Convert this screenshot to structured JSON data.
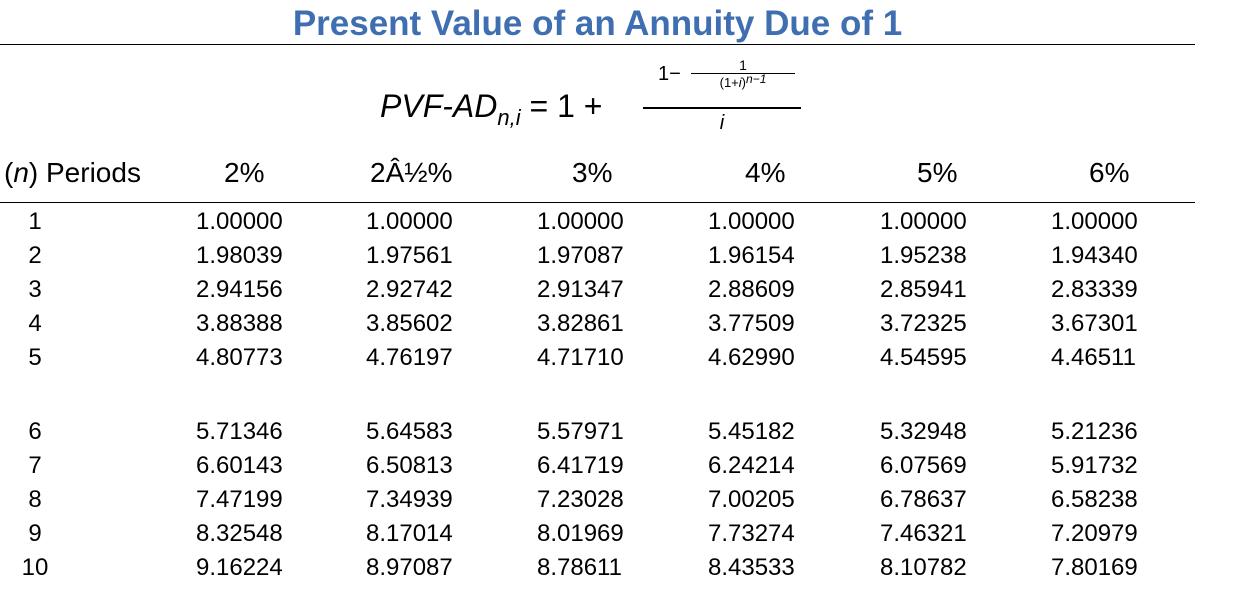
{
  "title": "Present Value of an Annuity Due of 1",
  "formula": {
    "lhs_main": "PVF-AD",
    "lhs_sub": "n,i",
    "lhs_tail": " = 1 + ",
    "outer_numerator_prefix": "1−",
    "inner_numerator": "1",
    "inner_denominator_base": "(1+",
    "inner_denominator_var": "i",
    "inner_denominator_close": ")",
    "inner_denominator_exp": "n−1",
    "outer_denominator": "i"
  },
  "table": {
    "period_header_var": "n",
    "period_header_text": ") Periods",
    "period_header_open": "(",
    "rate_headers": [
      "2%",
      "2Â½%",
      "3%",
      "4%",
      "5%",
      "6%"
    ],
    "rows": [
      {
        "period": "1",
        "values": [
          "1.00000",
          "1.00000",
          "1.00000",
          "1.00000",
          "1.00000",
          "1.00000"
        ]
      },
      {
        "period": "2",
        "values": [
          "1.98039",
          "1.97561",
          "1.97087",
          "1.96154",
          "1.95238",
          "1.94340"
        ]
      },
      {
        "period": "3",
        "values": [
          "2.94156",
          "2.92742",
          "2.91347",
          "2.88609",
          "2.85941",
          "2.83339"
        ]
      },
      {
        "period": "4",
        "values": [
          "3.88388",
          "3.85602",
          "3.82861",
          "3.77509",
          "3.72325",
          "3.67301"
        ]
      },
      {
        "period": "5",
        "values": [
          "4.80773",
          "4.76197",
          "4.71710",
          "4.62990",
          "4.54595",
          "4.46511"
        ]
      },
      {
        "period": "6",
        "values": [
          "5.71346",
          "5.64583",
          "5.57971",
          "5.45182",
          "5.32948",
          "5.21236"
        ]
      },
      {
        "period": "7",
        "values": [
          "6.60143",
          "6.50813",
          "6.41719",
          "6.24214",
          "6.07569",
          "5.91732"
        ]
      },
      {
        "period": "8",
        "values": [
          "7.47199",
          "7.34939",
          "7.23028",
          "7.00205",
          "6.78637",
          "6.58238"
        ]
      },
      {
        "period": "9",
        "values": [
          "8.32548",
          "8.17014",
          "8.01969",
          "7.73274",
          "7.46321",
          "7.20979"
        ]
      },
      {
        "period": "10",
        "values": [
          "9.16224",
          "8.97087",
          "8.78611",
          "8.43533",
          "8.10782",
          "7.80169"
        ]
      }
    ]
  },
  "colors": {
    "title": "#3f6fb0",
    "text": "#000000",
    "background": "#ffffff"
  }
}
